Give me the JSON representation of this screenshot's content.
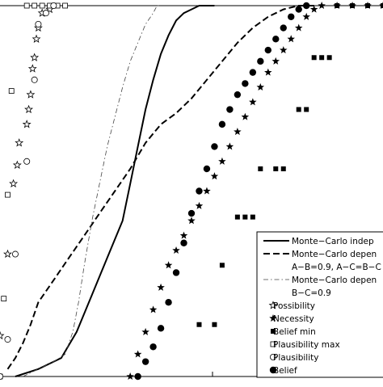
{
  "chart_data": {
    "type": "line",
    "title": "",
    "xlabel": "",
    "ylabel": "",
    "xlim": [
      0,
      100
    ],
    "ylim": [
      0,
      1
    ],
    "grid": false,
    "legend_position": "bottom-right",
    "series": [
      {
        "name": "Monte−Carlo indep",
        "style": "solid",
        "x": [
          4,
          10,
          16,
          20,
          24,
          28,
          32,
          34,
          36,
          38,
          40,
          42,
          44,
          46,
          48,
          50,
          52,
          54,
          56
        ],
        "y": [
          0,
          0.02,
          0.05,
          0.12,
          0.22,
          0.32,
          0.42,
          0.52,
          0.62,
          0.72,
          0.8,
          0.87,
          0.92,
          0.96,
          0.98,
          0.99,
          1,
          1,
          1
        ]
      },
      {
        "name": "Monte−Carlo depen",
        "name_line2": "A−B=0.9, A−C=B−C",
        "style": "dashed",
        "x": [
          2,
          4,
          6,
          8,
          10,
          14,
          18,
          22,
          26,
          30,
          34,
          38,
          42,
          46,
          50,
          54,
          58,
          62,
          66,
          70,
          74,
          78,
          82
        ],
        "y": [
          0.02,
          0.05,
          0.09,
          0.14,
          0.2,
          0.26,
          0.32,
          0.38,
          0.44,
          0.5,
          0.56,
          0.63,
          0.68,
          0.71,
          0.75,
          0.8,
          0.85,
          0.9,
          0.94,
          0.97,
          0.99,
          1,
          1
        ]
      },
      {
        "name": "Monte−Carlo depen",
        "name_line2": "B−C=0.9",
        "style": "dashdot",
        "x": [
          6,
          10,
          14,
          17,
          19,
          20.5,
          22,
          24,
          26,
          28,
          30,
          32,
          34,
          36,
          38,
          40,
          41,
          42
        ],
        "y": [
          0,
          0.02,
          0.04,
          0.06,
          0.12,
          0.2,
          0.3,
          0.42,
          0.52,
          0.62,
          0.7,
          0.78,
          0.85,
          0.9,
          0.95,
          0.98,
          1,
          1
        ]
      },
      {
        "name": "Possibility",
        "marker": "star-open",
        "x": [
          0,
          0,
          0,
          3,
          5,
          7,
          8,
          9,
          10,
          10.5,
          11,
          12,
          13
        ],
        "y": [
          0.11,
          0.33,
          0.52,
          0.68,
          0.76,
          0.86,
          0.92,
          1,
          1.02,
          1.02,
          1.02,
          1.02,
          1.02
        ],
        "pairs": [
          [
            0,
            0.11
          ],
          [
            2,
            0.33
          ],
          [
            3.5,
            0.52
          ],
          [
            4.5,
            0.57
          ],
          [
            5,
            0.63
          ],
          [
            7,
            0.68
          ],
          [
            7.5,
            0.72
          ],
          [
            8,
            0.76
          ],
          [
            8.5,
            0.83
          ],
          [
            9,
            0.86
          ],
          [
            9.5,
            0.91
          ],
          [
            10,
            0.94
          ],
          [
            11,
            0.98
          ],
          [
            13,
            0.99
          ]
        ]
      },
      {
        "name": "Necessity",
        "marker": "star-filled",
        "pairs": [
          [
            34,
            0.0
          ],
          [
            36,
            0.06
          ],
          [
            38,
            0.12
          ],
          [
            40,
            0.18
          ],
          [
            42,
            0.24
          ],
          [
            44,
            0.3
          ],
          [
            46,
            0.34
          ],
          [
            48,
            0.38
          ],
          [
            50,
            0.42
          ],
          [
            52,
            0.46
          ],
          [
            54,
            0.5
          ],
          [
            56,
            0.54
          ],
          [
            58,
            0.58
          ],
          [
            60,
            0.62
          ],
          [
            62,
            0.66
          ],
          [
            64,
            0.7
          ],
          [
            66,
            0.74
          ],
          [
            68,
            0.78
          ],
          [
            70,
            0.82
          ],
          [
            72,
            0.85
          ],
          [
            74,
            0.88
          ],
          [
            76,
            0.91
          ],
          [
            78,
            0.94
          ],
          [
            80,
            0.97
          ],
          [
            82,
            0.99
          ],
          [
            84,
            1
          ],
          [
            88,
            1
          ],
          [
            92,
            1
          ],
          [
            96,
            1
          ],
          [
            100,
            1
          ]
        ]
      },
      {
        "name": "Belief min",
        "marker": "square-filled",
        "pairs": [
          [
            52,
            0.14
          ],
          [
            56,
            0.14
          ],
          [
            58,
            0.3
          ],
          [
            62,
            0.43
          ],
          [
            64,
            0.43
          ],
          [
            66,
            0.43
          ],
          [
            68,
            0.56
          ],
          [
            72,
            0.56
          ],
          [
            74,
            0.56
          ],
          [
            78,
            0.72
          ],
          [
            80,
            0.72
          ],
          [
            82,
            0.86
          ],
          [
            84,
            0.86
          ],
          [
            86,
            0.86
          ],
          [
            88,
            1
          ],
          [
            92,
            1
          ],
          [
            96,
            1
          ],
          [
            100,
            1
          ]
        ]
      },
      {
        "name": "Plausibility max",
        "marker": "square-open",
        "pairs": [
          [
            0,
            0.0
          ],
          [
            1,
            0.21
          ],
          [
            2,
            0.49
          ],
          [
            3,
            0.77
          ],
          [
            7,
            1.0
          ],
          [
            9,
            1.0
          ],
          [
            11,
            1.0
          ],
          [
            13,
            1.0
          ],
          [
            15,
            1.0
          ],
          [
            17,
            1.0
          ]
        ]
      },
      {
        "name": "Plausibility",
        "marker": "circle-open",
        "pairs": [
          [
            0,
            0.0
          ],
          [
            2,
            0.1
          ],
          [
            4,
            0.33
          ],
          [
            7,
            0.58
          ],
          [
            9,
            0.8
          ],
          [
            10,
            0.95
          ],
          [
            12,
            0.98
          ],
          [
            14,
            1.0
          ]
        ]
      },
      {
        "name": "Belief",
        "marker": "circle-filled",
        "pairs": [
          [
            36,
            0.0
          ],
          [
            38,
            0.04
          ],
          [
            40,
            0.08
          ],
          [
            42,
            0.13
          ],
          [
            44,
            0.2
          ],
          [
            46,
            0.28
          ],
          [
            48,
            0.36
          ],
          [
            50,
            0.44
          ],
          [
            52,
            0.5
          ],
          [
            54,
            0.56
          ],
          [
            56,
            0.62
          ],
          [
            58,
            0.68
          ],
          [
            60,
            0.72
          ],
          [
            62,
            0.76
          ],
          [
            64,
            0.79
          ],
          [
            66,
            0.82
          ],
          [
            68,
            0.85
          ],
          [
            70,
            0.88
          ],
          [
            72,
            0.91
          ],
          [
            74,
            0.94
          ],
          [
            76,
            0.97
          ],
          [
            78,
            0.99
          ],
          [
            80,
            1.0
          ]
        ]
      }
    ]
  }
}
